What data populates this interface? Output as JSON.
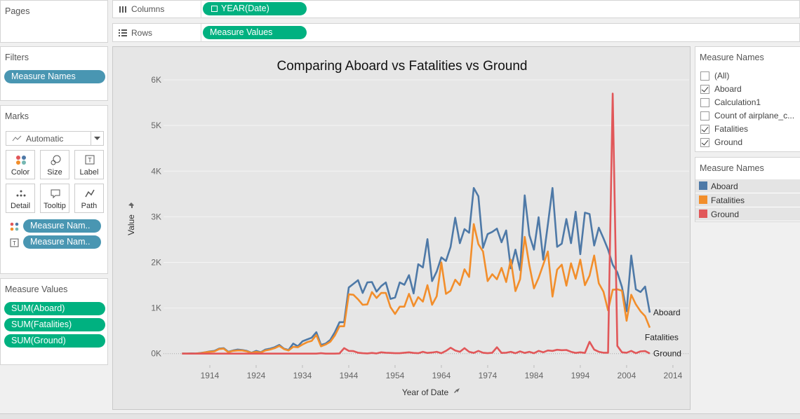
{
  "shelves": {
    "columns": {
      "label": "Columns",
      "pill": "YEAR(Date)"
    },
    "rows": {
      "label": "Rows",
      "pill": "Measure Values"
    }
  },
  "pages": {
    "title": "Pages"
  },
  "filters": {
    "title": "Filters",
    "pills": [
      "Measure Names"
    ]
  },
  "marks": {
    "title": "Marks",
    "mark_type": "Automatic",
    "buttons": [
      "Color",
      "Size",
      "Label",
      "Detail",
      "Tooltip",
      "Path"
    ],
    "pills": [
      "Measure Nam..",
      "Measure Nam.."
    ]
  },
  "measure_values": {
    "title": "Measure Values",
    "pills": [
      "SUM(Aboard)",
      "SUM(Fatalities)",
      "SUM(Ground)"
    ]
  },
  "filter_card": {
    "title": "Measure Names",
    "items": [
      {
        "label": "(All)",
        "checked": false
      },
      {
        "label": "Aboard",
        "checked": true
      },
      {
        "label": "Calculation1",
        "checked": false
      },
      {
        "label": "Count of airplane_c...",
        "checked": false
      },
      {
        "label": "Fatalities",
        "checked": true
      },
      {
        "label": "Ground",
        "checked": true
      }
    ]
  },
  "legend": {
    "title": "Measure Names"
  },
  "chart_data": {
    "type": "line",
    "title": "Comparing Aboard vs Fatalities vs Ground",
    "x_label": "Year of Date",
    "y_label": "Value",
    "x": [
      1908,
      1909,
      1910,
      1911,
      1912,
      1913,
      1914,
      1915,
      1916,
      1917,
      1918,
      1919,
      1920,
      1921,
      1922,
      1923,
      1924,
      1925,
      1926,
      1927,
      1928,
      1929,
      1930,
      1931,
      1932,
      1933,
      1934,
      1935,
      1936,
      1937,
      1938,
      1939,
      1940,
      1941,
      1942,
      1943,
      1944,
      1945,
      1946,
      1947,
      1948,
      1949,
      1950,
      1951,
      1952,
      1953,
      1954,
      1955,
      1956,
      1957,
      1958,
      1959,
      1960,
      1961,
      1962,
      1963,
      1964,
      1965,
      1966,
      1967,
      1968,
      1969,
      1970,
      1971,
      1972,
      1973,
      1974,
      1975,
      1976,
      1977,
      1978,
      1979,
      1980,
      1981,
      1982,
      1983,
      1984,
      1985,
      1986,
      1987,
      1988,
      1989,
      1990,
      1991,
      1992,
      1993,
      1994,
      1995,
      1996,
      1997,
      1998,
      1999,
      2000,
      2001,
      2002,
      2003,
      2004,
      2005,
      2006,
      2007,
      2008,
      2009
    ],
    "series": [
      {
        "name": "Aboard",
        "color": "#4e79a7",
        "values": [
          2,
          0,
          5,
          2,
          14,
          30,
          50,
          60,
          110,
          120,
          40,
          70,
          90,
          80,
          60,
          20,
          60,
          30,
          90,
          110,
          140,
          190,
          110,
          80,
          220,
          160,
          270,
          310,
          350,
          470,
          190,
          220,
          300,
          470,
          690,
          690,
          1450,
          1530,
          1610,
          1330,
          1560,
          1570,
          1360,
          1480,
          1560,
          1200,
          1230,
          1560,
          1510,
          1720,
          1320,
          1960,
          1890,
          2510,
          1590,
          1800,
          2110,
          2030,
          2340,
          2980,
          2420,
          2730,
          2650,
          3630,
          3450,
          2320,
          2620,
          2670,
          2740,
          2440,
          2700,
          1870,
          2280,
          1830,
          3470,
          2600,
          2280,
          2990,
          2060,
          2830,
          3630,
          2340,
          2410,
          2950,
          2420,
          3110,
          2180,
          3090,
          3060,
          2370,
          2760,
          2530,
          2280,
          1950,
          1780,
          1460,
          930,
          2150,
          1410,
          1350,
          1470,
          900
        ]
      },
      {
        "name": "Fatalities",
        "color": "#f28e2b",
        "values": [
          1,
          0,
          1,
          2,
          10,
          28,
          40,
          50,
          100,
          110,
          30,
          60,
          70,
          70,
          50,
          15,
          40,
          25,
          70,
          90,
          120,
          170,
          100,
          70,
          150,
          140,
          200,
          250,
          280,
          410,
          160,
          200,
          260,
          400,
          600,
          600,
          1300,
          1290,
          1190,
          1070,
          1080,
          1350,
          1220,
          1330,
          1330,
          1020,
          870,
          1030,
          1030,
          1310,
          1040,
          1240,
          1140,
          1500,
          1070,
          1260,
          2000,
          1310,
          1380,
          1620,
          1500,
          1850,
          1680,
          2840,
          2400,
          2240,
          1590,
          1740,
          1630,
          1880,
          1570,
          2060,
          1370,
          1630,
          2560,
          1940,
          1430,
          1660,
          1950,
          2240,
          1250,
          1840,
          1950,
          1490,
          1980,
          1640,
          2060,
          1500,
          1710,
          2150,
          1540,
          1360,
          950,
          1400,
          1410,
          1380,
          720,
          1290,
          1080,
          930,
          820,
          570
        ]
      },
      {
        "name": "Ground",
        "color": "#e15759",
        "values": [
          0,
          0,
          0,
          0,
          0,
          0,
          0,
          0,
          0,
          0,
          0,
          0,
          0,
          0,
          0,
          0,
          0,
          0,
          0,
          0,
          0,
          0,
          0,
          0,
          0,
          0,
          0,
          0,
          0,
          0,
          10,
          0,
          0,
          0,
          5,
          120,
          60,
          55,
          20,
          10,
          5,
          15,
          5,
          30,
          20,
          15,
          10,
          10,
          20,
          30,
          15,
          10,
          40,
          15,
          25,
          40,
          10,
          60,
          130,
          70,
          40,
          120,
          40,
          15,
          60,
          20,
          10,
          20,
          140,
          15,
          20,
          40,
          10,
          50,
          15,
          40,
          10,
          60,
          30,
          70,
          60,
          85,
          75,
          80,
          40,
          15,
          30,
          15,
          260,
          90,
          40,
          20,
          20,
          5700,
          170,
          30,
          20,
          60,
          10,
          50,
          55,
          5
        ]
      }
    ],
    "xlim": [
      1904,
      2017.5
    ],
    "xticks": [
      1914,
      1924,
      1934,
      1944,
      1954,
      1964,
      1974,
      1984,
      1994,
      2004,
      2014
    ],
    "ylim": [
      -250,
      6200
    ],
    "yticks": [
      {
        "value": 0,
        "label": "0K"
      },
      {
        "value": 1000,
        "label": "1K"
      },
      {
        "value": 2000,
        "label": "2K"
      },
      {
        "value": 3000,
        "label": "3K"
      },
      {
        "value": 4000,
        "label": "4K"
      },
      {
        "value": 5000,
        "label": "5K"
      },
      {
        "value": 6000,
        "label": "6K"
      }
    ],
    "grid": true
  }
}
